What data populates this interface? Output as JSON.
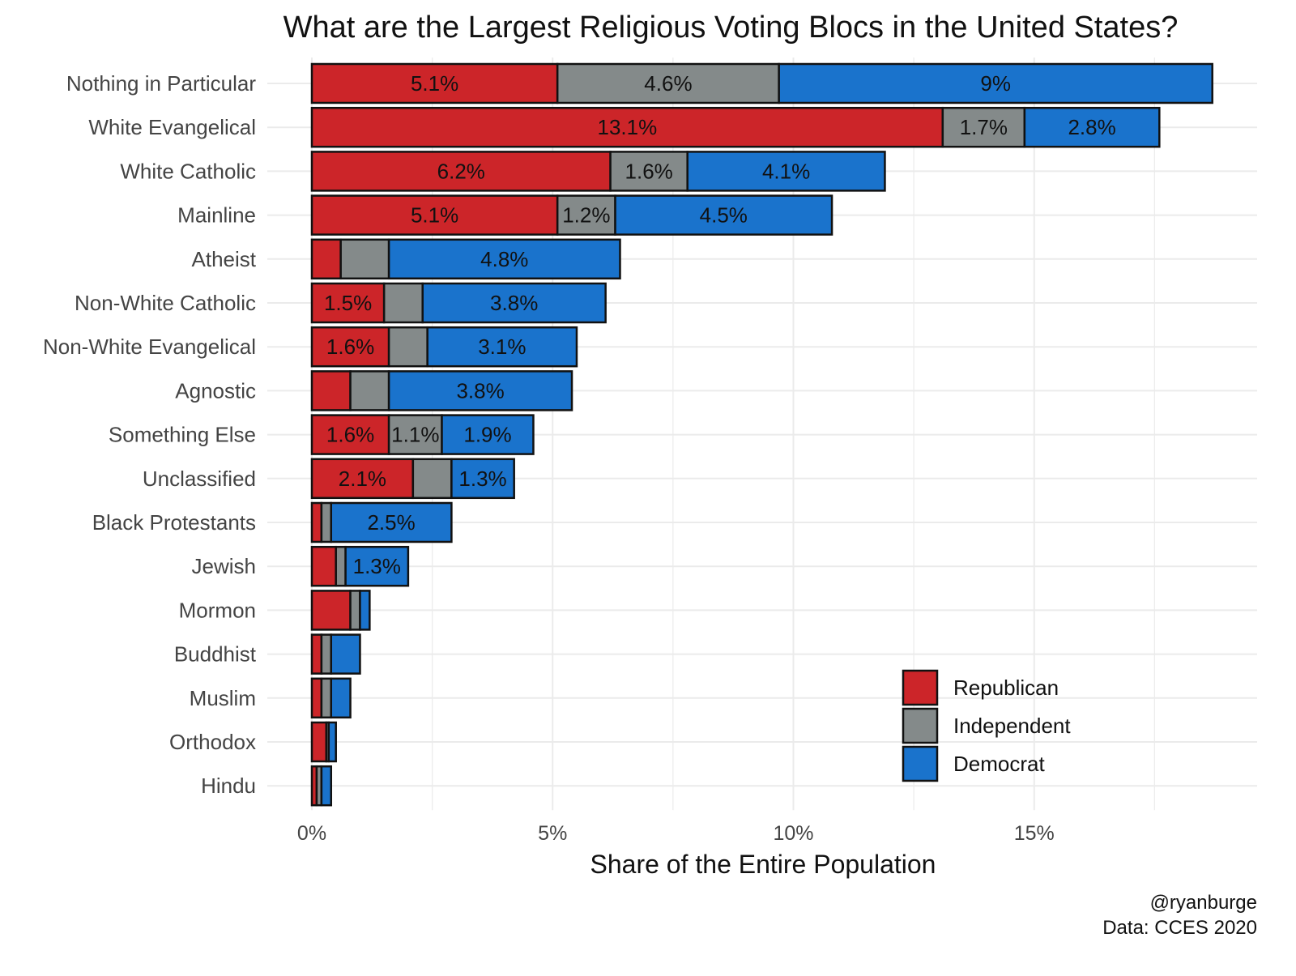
{
  "chart_data": {
    "type": "bar",
    "orientation": "horizontal",
    "stacked": true,
    "title": "What are the Largest Religious Voting Blocs in the United States?",
    "xlabel": "Share of the Entire Population",
    "ylabel": "",
    "xlim": [
      0,
      19.2
    ],
    "xticks": [
      0,
      5,
      10,
      15
    ],
    "xtick_labels": [
      "0%",
      "5%",
      "10%",
      "15%"
    ],
    "grid": true,
    "legend_position": "bottom-right",
    "categories": [
      "Nothing in Particular",
      "White Evangelical",
      "White Catholic",
      "Mainline",
      "Atheist",
      "Non-White Catholic",
      "Non-White Evangelical",
      "Agnostic",
      "Something Else",
      "Unclassified",
      "Black Protestants",
      "Jewish",
      "Mormon",
      "Buddhist",
      "Muslim",
      "Orthodox",
      "Hindu"
    ],
    "series": [
      {
        "name": "Republican",
        "color": "#CC2529",
        "values": [
          5.1,
          13.1,
          6.2,
          5.1,
          0.6,
          1.5,
          1.6,
          0.8,
          1.6,
          2.1,
          0.2,
          0.5,
          0.8,
          0.2,
          0.2,
          0.3,
          0.1
        ],
        "labels": [
          "5.1%",
          "13.1%",
          "6.2%",
          "5.1%",
          "",
          "1.5%",
          "1.6%",
          "",
          "1.6%",
          "2.1%",
          "",
          "",
          "",
          "",
          "",
          "",
          ""
        ]
      },
      {
        "name": "Independent",
        "color": "#848A8A",
        "values": [
          4.6,
          1.7,
          1.6,
          1.2,
          1.0,
          0.8,
          0.8,
          0.8,
          1.1,
          0.8,
          0.2,
          0.2,
          0.2,
          0.2,
          0.2,
          0.05,
          0.1
        ],
        "labels": [
          "4.6%",
          "1.7%",
          "1.6%",
          "1.2%",
          "",
          "",
          "",
          "",
          "1.1%",
          "",
          "",
          "",
          "",
          "",
          "",
          "",
          ""
        ]
      },
      {
        "name": "Democrat",
        "color": "#1A73CC",
        "values": [
          9.0,
          2.8,
          4.1,
          4.5,
          4.8,
          3.8,
          3.1,
          3.8,
          1.9,
          1.3,
          2.5,
          1.3,
          0.2,
          0.6,
          0.4,
          0.15,
          0.2
        ],
        "labels": [
          "9%",
          "2.8%",
          "4.1%",
          "4.5%",
          "4.8%",
          "3.8%",
          "3.1%",
          "3.8%",
          "1.9%",
          "1.3%",
          "2.5%",
          "1.3%",
          "",
          "",
          "",
          "",
          ""
        ]
      }
    ],
    "caption": [
      "@ryanburge",
      "Data: CCES 2020"
    ]
  }
}
